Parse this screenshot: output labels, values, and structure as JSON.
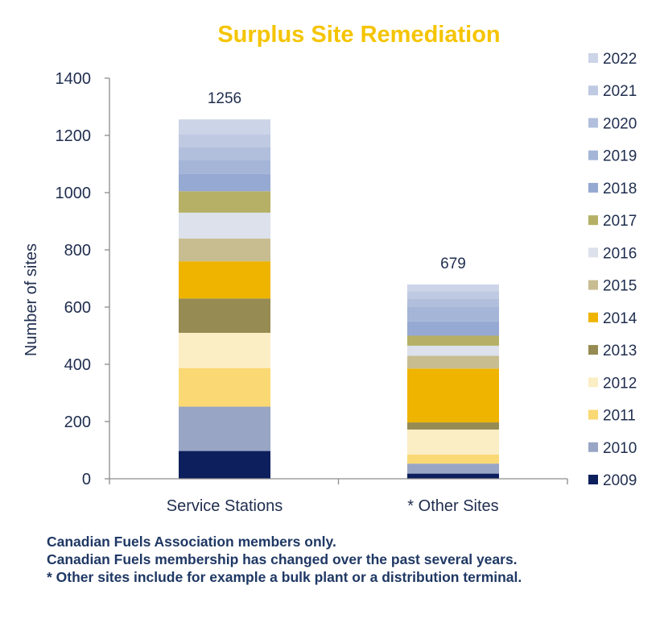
{
  "colors": {
    "title": "#f5c400",
    "text": "#1f2d4e",
    "note": "#1f3864",
    "axis": "#8c8c8c"
  },
  "chart_data": {
    "type": "bar",
    "stacked": true,
    "title": "Surplus Site Remediation",
    "ylabel": "Number of sites",
    "xlabel": "",
    "ylim": [
      0,
      1400
    ],
    "yticks": [
      "0",
      "200",
      "400",
      "600",
      "800",
      "1000",
      "1200",
      "1400"
    ],
    "categories": [
      "Service Stations",
      "* Other Sites"
    ],
    "totals": [
      "1256",
      "679"
    ],
    "legend_position": "right",
    "grid": false,
    "series": [
      {
        "name": "2009",
        "color": "#0d1f5c",
        "values": [
          97,
          18
        ]
      },
      {
        "name": "2010",
        "color": "#98a5c4",
        "values": [
          155,
          35
        ]
      },
      {
        "name": "2011",
        "color": "#fad874",
        "values": [
          135,
          32
        ]
      },
      {
        "name": "2012",
        "color": "#fbeec4",
        "values": [
          123,
          87
        ]
      },
      {
        "name": "2013",
        "color": "#968b52",
        "values": [
          120,
          25
        ]
      },
      {
        "name": "2014",
        "color": "#eeb400",
        "values": [
          130,
          188
        ]
      },
      {
        "name": "2015",
        "color": "#c7bd91",
        "values": [
          80,
          45
        ]
      },
      {
        "name": "2016",
        "color": "#dde1ec",
        "values": [
          90,
          35
        ]
      },
      {
        "name": "2017",
        "color": "#b5b066",
        "values": [
          75,
          35
        ]
      },
      {
        "name": "2018",
        "color": "#96a9d2",
        "values": [
          60,
          50
        ]
      },
      {
        "name": "2019",
        "color": "#a4b5d8",
        "values": [
          50,
          50
        ]
      },
      {
        "name": "2020",
        "color": "#b1bfdd",
        "values": [
          45,
          30
        ]
      },
      {
        "name": "2021",
        "color": "#bfcae2",
        "values": [
          45,
          25
        ]
      },
      {
        "name": "2022",
        "color": "#ccd4e8",
        "values": [
          51,
          24
        ]
      }
    ]
  },
  "notes": [
    "Canadian Fuels Association members only.",
    "Canadian Fuels membership has changed over the past several years.",
    "* Other sites include for example a bulk plant or a distribution terminal."
  ]
}
